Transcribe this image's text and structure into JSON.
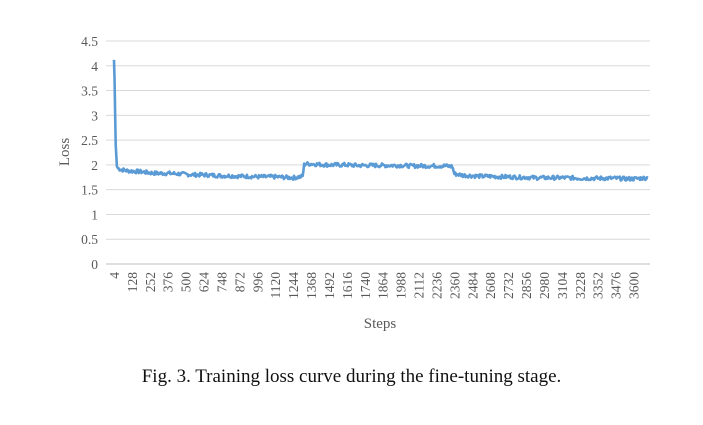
{
  "chart_data": {
    "type": "line",
    "xlabel": "Steps",
    "ylabel": "Loss",
    "ylim": [
      0,
      4.5
    ],
    "y_ticks": [
      "0",
      "0.5",
      "1",
      "1.5",
      "2",
      "2.5",
      "3",
      "3.5",
      "4",
      "4.5"
    ],
    "x_ticks": [
      "4",
      "128",
      "252",
      "376",
      "500",
      "624",
      "748",
      "872",
      "996",
      "1120",
      "1244",
      "1368",
      "1492",
      "1616",
      "1740",
      "1864",
      "1988",
      "2112",
      "2236",
      "2360",
      "2484",
      "2608",
      "2732",
      "2856",
      "2980",
      "3104",
      "3228",
      "3352",
      "3476",
      "3600"
    ],
    "xlim": [
      4,
      3700
    ],
    "grid": true,
    "line_color": "#5b9bd5",
    "series": [
      {
        "x": [
          4,
          8,
          12,
          16,
          24,
          32,
          48,
          64,
          100,
          150,
          200,
          252,
          300,
          376,
          450,
          500,
          560,
          624,
          690,
          748,
          810,
          872,
          930,
          996,
          1060,
          1120,
          1180,
          1244,
          1290,
          1310,
          1320,
          1330,
          1368,
          1420,
          1492,
          1550,
          1616,
          1680,
          1740,
          1800,
          1864,
          1920,
          1988,
          2050,
          2112,
          2180,
          2236,
          2300,
          2330,
          2345,
          2360,
          2420,
          2484,
          2550,
          2608,
          2670,
          2732,
          2800,
          2856,
          2920,
          2980,
          3040,
          3104,
          3160,
          3228,
          3290,
          3352,
          3410,
          3476,
          3540,
          3600,
          3650,
          3700
        ],
        "values": [
          4.12,
          3.7,
          3.0,
          2.4,
          1.97,
          1.93,
          1.91,
          1.9,
          1.88,
          1.87,
          1.86,
          1.84,
          1.83,
          1.83,
          1.82,
          1.81,
          1.8,
          1.8,
          1.79,
          1.78,
          1.78,
          1.77,
          1.77,
          1.76,
          1.76,
          1.76,
          1.75,
          1.74,
          1.76,
          1.77,
          2.0,
          2.02,
          2.02,
          2.01,
          2.0,
          2.0,
          2.0,
          1.99,
          1.99,
          1.99,
          1.99,
          1.99,
          1.99,
          1.98,
          1.98,
          1.98,
          1.98,
          1.98,
          1.97,
          1.97,
          1.82,
          1.79,
          1.78,
          1.77,
          1.77,
          1.76,
          1.76,
          1.75,
          1.75,
          1.74,
          1.74,
          1.74,
          1.74,
          1.74,
          1.73,
          1.73,
          1.73,
          1.73,
          1.73,
          1.72,
          1.72,
          1.73,
          1.74
        ]
      }
    ]
  },
  "caption": "Fig. 3.  Training loss curve during the fine-tuning stage."
}
